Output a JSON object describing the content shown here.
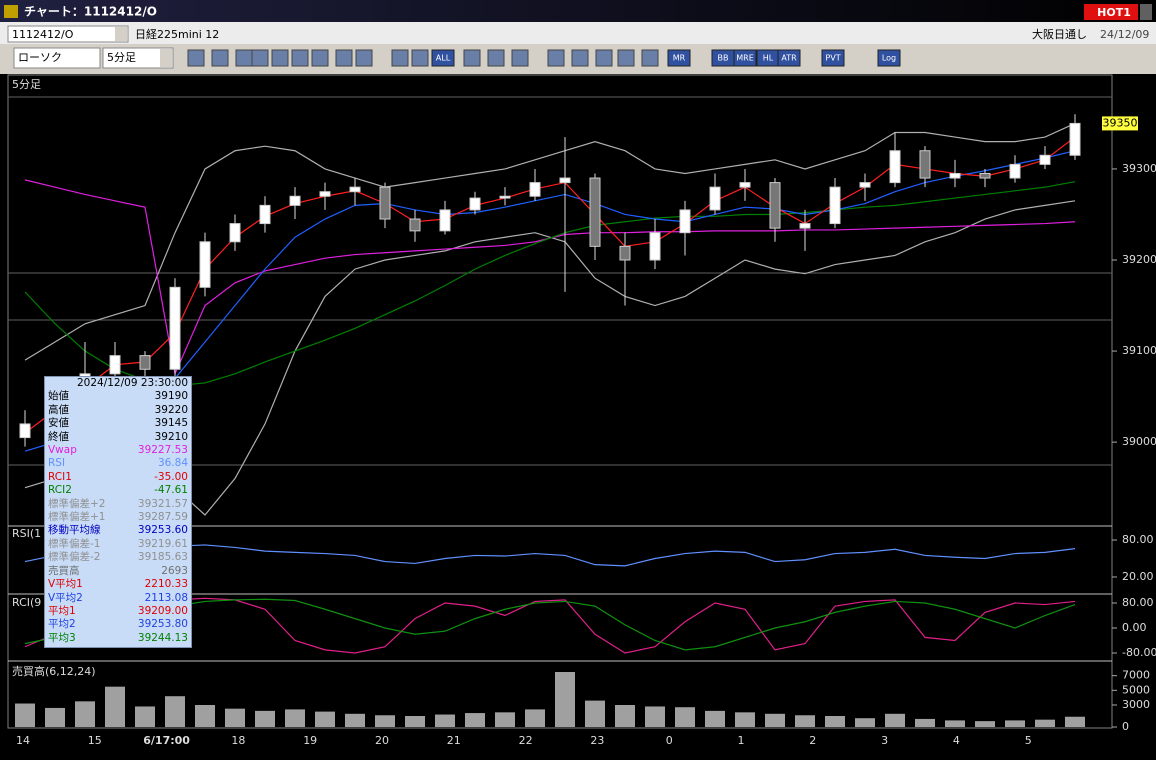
{
  "window": {
    "title": "チャート：1112412/O",
    "badge": "HOT1"
  },
  "header": {
    "symbol_code": "1112412/O",
    "symbol_name": "日経225mini 12",
    "market": "大阪日通し",
    "date": "24/12/09"
  },
  "toolbar": {
    "chart_style": "ローソク",
    "interval": "5分足",
    "icons": [
      "ALL",
      "MR",
      "BB",
      "MRE",
      "HL",
      "ATR",
      "PVT",
      "Log"
    ]
  },
  "x_axis": {
    "labels": [
      "14",
      "15",
      "6/17:00",
      "18",
      "19",
      "20",
      "21",
      "22",
      "23",
      "0",
      "1",
      "2",
      "3",
      "4",
      "5"
    ]
  },
  "chart_data": [
    {
      "type": "candlestick",
      "label": "5分足",
      "ylim": [
        38909,
        39379
      ],
      "yticks": [
        39000,
        39100,
        39200,
        39300
      ],
      "last_price": 39350,
      "candles": [
        [
          39005,
          39035,
          38995,
          39020
        ],
        [
          39020,
          39060,
          39015,
          39050
        ],
        [
          39050,
          39110,
          39045,
          39075
        ],
        [
          39075,
          39110,
          39070,
          39095
        ],
        [
          39095,
          39100,
          39060,
          39080
        ],
        [
          39080,
          39180,
          39070,
          39170
        ],
        [
          39170,
          39230,
          39160,
          39220
        ],
        [
          39220,
          39250,
          39210,
          39240
        ],
        [
          39240,
          39270,
          39230,
          39260
        ],
        [
          39260,
          39280,
          39245,
          39270
        ],
        [
          39270,
          39285,
          39255,
          39275
        ],
        [
          39275,
          39290,
          39260,
          39280
        ],
        [
          39280,
          39285,
          39235,
          39245
        ],
        [
          39245,
          39255,
          39220,
          39232
        ],
        [
          39232,
          39265,
          39228,
          39255
        ],
        [
          39255,
          39275,
          39250,
          39268
        ],
        [
          39268,
          39280,
          39260,
          39270
        ],
        [
          39270,
          39300,
          39265,
          39285
        ],
        [
          39285,
          39335,
          39165,
          39290
        ],
        [
          39290,
          39295,
          39200,
          39215
        ],
        [
          39215,
          39230,
          39150,
          39200
        ],
        [
          39200,
          39245,
          39190,
          39230
        ],
        [
          39230,
          39265,
          39205,
          39255
        ],
        [
          39255,
          39295,
          39250,
          39280
        ],
        [
          39280,
          39300,
          39265,
          39285
        ],
        [
          39285,
          39290,
          39220,
          39235
        ],
        [
          39235,
          39255,
          39210,
          39240
        ],
        [
          39240,
          39290,
          39235,
          39280
        ],
        [
          39280,
          39295,
          39265,
          39285
        ],
        [
          39285,
          39340,
          39280,
          39320
        ],
        [
          39320,
          39325,
          39280,
          39290
        ],
        [
          39290,
          39310,
          39280,
          39295
        ],
        [
          39295,
          39300,
          39280,
          39290
        ],
        [
          39290,
          39315,
          39285,
          39305
        ],
        [
          39305,
          39325,
          39300,
          39315
        ],
        [
          39315,
          39360,
          39310,
          39350
        ]
      ],
      "series": [
        {
          "color": "#b0b0b0",
          "values": [
            39090,
            39110,
            39130,
            39140,
            39150,
            39230,
            39300,
            39320,
            39325,
            39320,
            39300,
            39290,
            39280,
            39285,
            39290,
            39295,
            39300,
            39310,
            39320,
            39330,
            39320,
            39300,
            39295,
            39300,
            39305,
            39310,
            39300,
            39310,
            39320,
            39340,
            39340,
            39335,
            39330,
            39330,
            39335,
            39350
          ]
        },
        {
          "color": "#b0b0b0",
          "values": [
            38950,
            38960,
            38980,
            39000,
            38990,
            38950,
            38920,
            38960,
            39020,
            39100,
            39160,
            39190,
            39200,
            39205,
            39210,
            39220,
            39225,
            39230,
            39220,
            39180,
            39160,
            39150,
            39160,
            39180,
            39200,
            39190,
            39185,
            39195,
            39200,
            39205,
            39220,
            39230,
            39245,
            39255,
            39260,
            39265
          ]
        },
        {
          "color": "#e020e0",
          "values": [
            39288,
            39280,
            39272,
            39265,
            39258,
            39075,
            39150,
            39175,
            39188,
            39195,
            39202,
            39206,
            39208,
            39210,
            39212,
            39214,
            39216,
            39220,
            39228,
            39230,
            39230,
            39231,
            39231,
            39232,
            39232,
            39232,
            39233,
            39233,
            39234,
            39235,
            39236,
            39237,
            39238,
            39239,
            39240,
            39242
          ]
        },
        {
          "color": "#008000",
          "values": [
            39165,
            39130,
            39100,
            39080,
            39068,
            39062,
            39065,
            39075,
            39088,
            39100,
            39112,
            39125,
            39140,
            39155,
            39172,
            39190,
            39205,
            39218,
            39230,
            39238,
            39242,
            39246,
            39248,
            39248,
            39250,
            39250,
            39252,
            39255,
            39258,
            39260,
            39264,
            39268,
            39272,
            39276,
            39280,
            39286
          ]
        },
        {
          "color": "#2060ff",
          "values": [
            38990,
            39000,
            39010,
            39030,
            39045,
            39070,
            39110,
            39150,
            39190,
            39225,
            39245,
            39260,
            39262,
            39255,
            39250,
            39252,
            39258,
            39265,
            39272,
            39262,
            39250,
            39245,
            39242,
            39250,
            39258,
            39256,
            39250,
            39255,
            39262,
            39275,
            39285,
            39292,
            39298,
            39305,
            39312,
            39320
          ]
        },
        {
          "color": "#ff2020",
          "values": [
            39010,
            39035,
            39060,
            39085,
            39088,
            39120,
            39190,
            39225,
            39248,
            39262,
            39270,
            39276,
            39262,
            39242,
            39245,
            39260,
            39268,
            39278,
            39285,
            39250,
            39215,
            39220,
            39240,
            39265,
            39280,
            39258,
            39240,
            39262,
            39280,
            39305,
            39300,
            39295,
            39292,
            39300,
            39310,
            39335
          ]
        }
      ]
    },
    {
      "type": "line",
      "label": "RSI(1",
      "ylim": [
        0,
        100
      ],
      "yticks": [
        {
          "value": 80,
          "label": "80.00"
        },
        {
          "value": 20,
          "label": "20.00"
        }
      ],
      "series": [
        {
          "color": "#6090ff",
          "values": [
            45,
            55,
            60,
            62,
            50,
            70,
            72,
            68,
            62,
            60,
            58,
            55,
            45,
            42,
            50,
            55,
            54,
            58,
            55,
            40,
            38,
            50,
            58,
            62,
            60,
            45,
            48,
            58,
            60,
            65,
            55,
            52,
            50,
            58,
            60,
            66
          ]
        }
      ]
    },
    {
      "type": "line",
      "label": "RCI(9",
      "ylim": [
        -100,
        100
      ],
      "yticks": [
        {
          "value": 80,
          "label": "80.00"
        },
        {
          "value": 0,
          "label": "0.00"
        },
        {
          "value": -80,
          "label": "-80.00"
        }
      ],
      "series": [
        {
          "color": "#e0208a",
          "values": [
            -60,
            -20,
            40,
            80,
            30,
            90,
            95,
            90,
            60,
            -40,
            -70,
            -80,
            -60,
            30,
            80,
            70,
            40,
            85,
            90,
            -20,
            -80,
            -60,
            20,
            80,
            60,
            -70,
            -50,
            70,
            85,
            90,
            -30,
            -40,
            50,
            80,
            75,
            85
          ]
        },
        {
          "color": "#109010",
          "values": [
            -50,
            -30,
            0,
            30,
            50,
            70,
            85,
            90,
            92,
            88,
            60,
            30,
            0,
            -20,
            -10,
            30,
            60,
            80,
            85,
            70,
            10,
            -40,
            -70,
            -60,
            -30,
            0,
            20,
            50,
            70,
            85,
            80,
            60,
            30,
            0,
            40,
            75
          ]
        }
      ]
    },
    {
      "type": "volume",
      "label": "売買高(6,12,24)",
      "ylim": [
        0,
        9000
      ],
      "yticks": [
        7000,
        5000,
        3000,
        0
      ],
      "color": "#a0a0a0",
      "values": [
        3200,
        2600,
        3500,
        5500,
        2800,
        4200,
        3000,
        2500,
        2200,
        2400,
        2100,
        1800,
        1600,
        1500,
        1700,
        1900,
        2000,
        2400,
        7500,
        3600,
        3000,
        2800,
        2700,
        2200,
        2000,
        1800,
        1600,
        1500,
        1200,
        1800,
        1100,
        900,
        800,
        900,
        1000,
        1400
      ]
    }
  ],
  "info_box": {
    "header": "2024/12/09 23:30:00",
    "rows": [
      {
        "label": "始値",
        "value": "39190",
        "color": "#000000"
      },
      {
        "label": "高値",
        "value": "39220",
        "color": "#000000"
      },
      {
        "label": "安値",
        "value": "39145",
        "color": "#000000"
      },
      {
        "label": "終値",
        "value": "39210",
        "color": "#000000"
      },
      {
        "label": "Vwap",
        "value": "39227.53",
        "color": "#e020e0"
      },
      {
        "label": "RSI",
        "value": "36.84",
        "color": "#6090ff"
      },
      {
        "label": "RCI1",
        "value": "-35.00",
        "color": "#e00000"
      },
      {
        "label": "RCI2",
        "value": "-47.61",
        "color": "#008000"
      },
      {
        "label": "標準偏差+2",
        "value": "39321.57",
        "color": "#909090"
      },
      {
        "label": "標準偏差+1",
        "value": "39287.59",
        "color": "#909090"
      },
      {
        "label": "移動平均線",
        "value": "39253.60",
        "color": "#0000c0"
      },
      {
        "label": "標準偏差-1",
        "value": "39219.61",
        "color": "#909090"
      },
      {
        "label": "標準偏差-2",
        "value": "39185.63",
        "color": "#909090"
      },
      {
        "label": "売買高",
        "value": "2693",
        "color": "#707070"
      },
      {
        "label": "V平均1",
        "value": "2210.33",
        "color": "#e00000"
      },
      {
        "label": "V平均2",
        "value": "2113.08",
        "color": "#2040e0"
      },
      {
        "label": "平均1",
        "value": "39209.00",
        "color": "#e00000"
      },
      {
        "label": "平均2",
        "value": "39253.80",
        "color": "#2040e0"
      },
      {
        "label": "平均3",
        "value": "39244.13",
        "color": "#008000"
      }
    ]
  }
}
